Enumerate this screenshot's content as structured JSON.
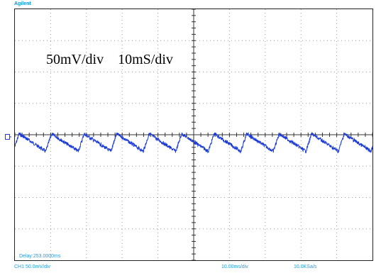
{
  "brand": "Agilent",
  "annotation": "50mV/div    10mS/div",
  "delay": "Delay:253.0000ms",
  "status": {
    "channel": "CH1 50.0mV/div",
    "timebase": "10.00ms/div",
    "sample_rate": "10.0KSa/s"
  },
  "marker_icon": "channel-ground-marker",
  "colors": {
    "brand": "#0096e0",
    "trace": "#1c3bd6",
    "status": "#1e9be0"
  },
  "scope": {
    "h_divisions": 10,
    "v_divisions": 8,
    "ripple_periods": 11,
    "trace_level_div": -0.25
  }
}
